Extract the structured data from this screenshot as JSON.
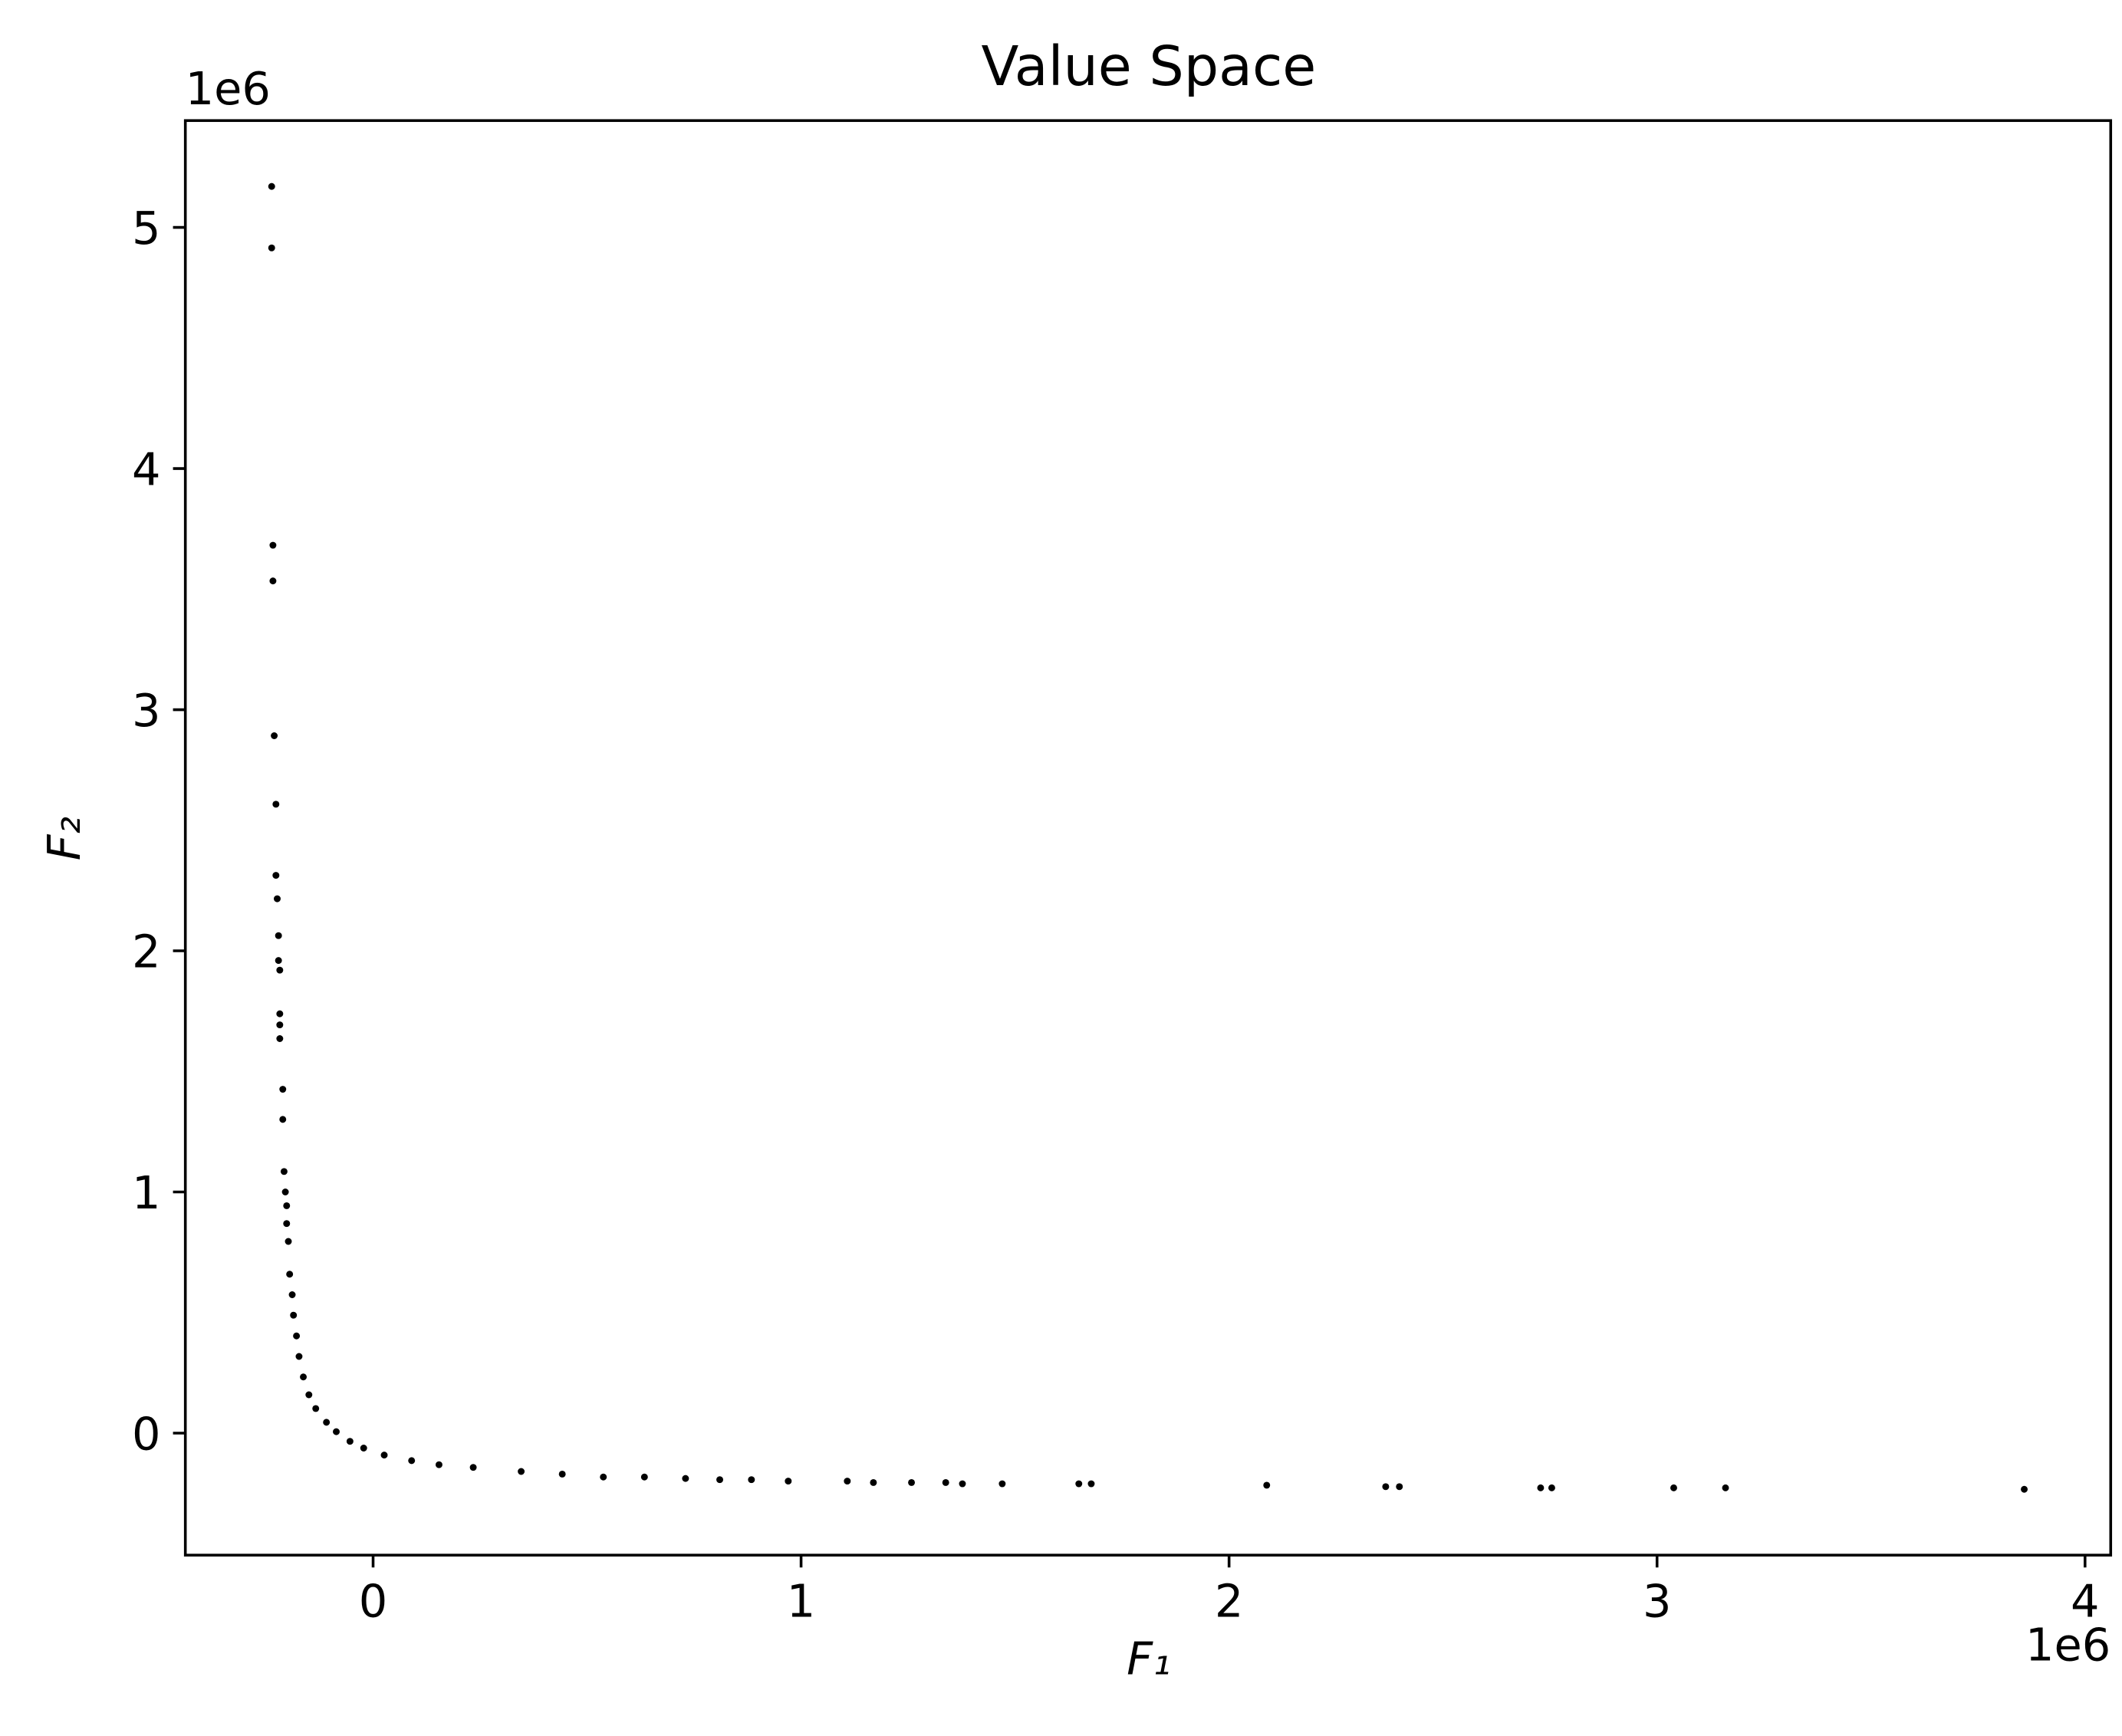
{
  "chart_data": {
    "type": "scatter",
    "title": "Value Space",
    "x_label": "F₁",
    "y_label": "F₂",
    "x_offset_label": "1e6",
    "y_offset_label": "1e6",
    "color": "#000000",
    "xlim": [
      -438700,
      4060000
    ],
    "ylim": [
      -506000,
      5443000
    ],
    "xticks": [
      {
        "value": 0,
        "label": "0"
      },
      {
        "value": 1000000,
        "label": "1"
      },
      {
        "value": 2000000,
        "label": "2"
      },
      {
        "value": 3000000,
        "label": "3"
      },
      {
        "value": 4000000,
        "label": "4"
      }
    ],
    "yticks": [
      {
        "value": 0,
        "label": "0"
      },
      {
        "value": 1000000,
        "label": "1"
      },
      {
        "value": 2000000,
        "label": "2"
      },
      {
        "value": 3000000,
        "label": "3"
      },
      {
        "value": 4000000,
        "label": "4"
      },
      {
        "value": 5000000,
        "label": "5"
      }
    ],
    "x": [
      -237000,
      -237000,
      -234000,
      -234000,
      -231000,
      -227000,
      -227000,
      -224000,
      -221000,
      -221000,
      -218000,
      -218000,
      -218000,
      -218000,
      -211000,
      -211000,
      -208000,
      -205000,
      -202000,
      -202000,
      -198000,
      -195000,
      -189000,
      -186000,
      -179000,
      -173000,
      -163000,
      -150000,
      -134000,
      -109000,
      -86000,
      -54000,
      -22000,
      26000,
      90000,
      154000,
      234000,
      346000,
      442000,
      538000,
      634000,
      730000,
      810000,
      884000,
      970000,
      1108000,
      1169000,
      1258000,
      1338000,
      1377000,
      1470000,
      1649000,
      1678000,
      2088000,
      2366000,
      2398000,
      2728000,
      2754000,
      3039000,
      3160000,
      3858000
    ],
    "values": [
      5170000,
      4915000,
      3682000,
      3534000,
      2892000,
      2608000,
      2313000,
      2216000,
      2063000,
      1960000,
      1920000,
      1739000,
      1693000,
      1636000,
      1426000,
      1301000,
      1085000,
      1000000,
      943000,
      869000,
      795000,
      659000,
      574000,
      489000,
      403000,
      318000,
      233000,
      159000,
      102000,
      45000,
      6000,
      -34000,
      -62000,
      -91000,
      -114000,
      -131000,
      -142000,
      -159000,
      -170000,
      -182000,
      -182000,
      -188000,
      -193000,
      -193000,
      -199000,
      -199000,
      -205000,
      -205000,
      -205000,
      -210000,
      -210000,
      -210000,
      -210000,
      -216000,
      -222000,
      -222000,
      -227000,
      -227000,
      -227000,
      -227000,
      -233000
    ]
  }
}
